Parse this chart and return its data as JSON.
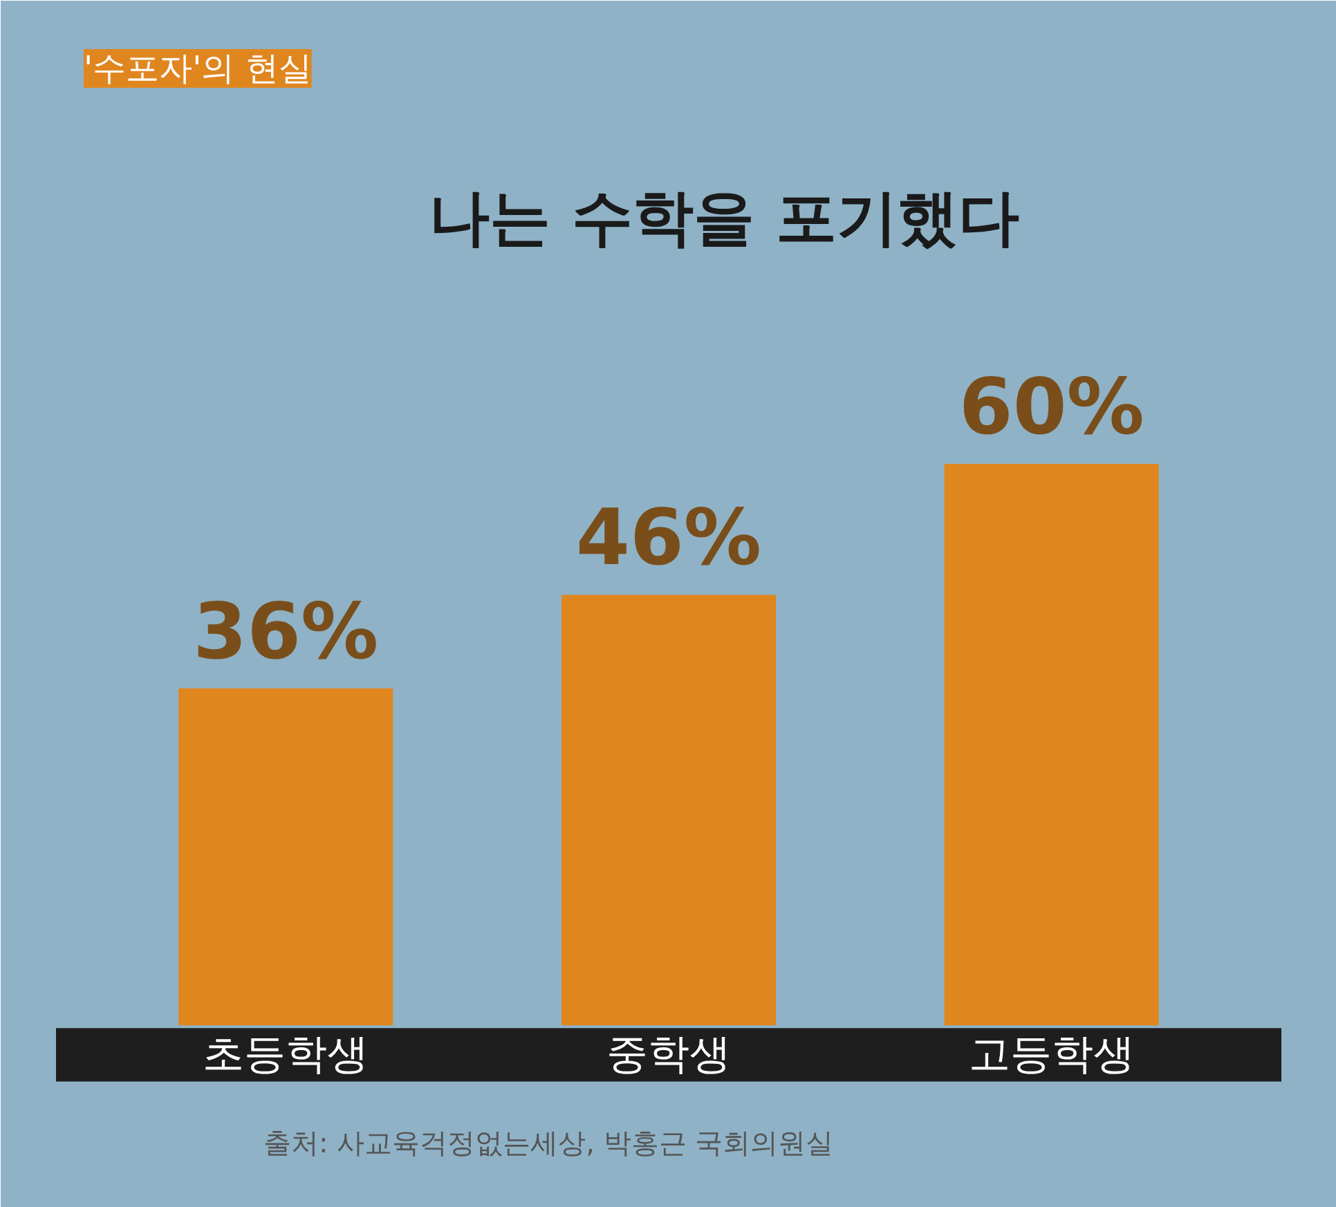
{
  "chart_data": {
    "type": "bar",
    "subtitle": "'수포자'의 현실",
    "title": "나는 수학을 포기했다",
    "categories": [
      "초등학생",
      "중학생",
      "고등학생"
    ],
    "values": [
      36,
      46,
      60
    ],
    "value_labels": [
      "36%",
      "46%",
      "60%"
    ],
    "color": "#e0861f",
    "annotations": [
      "출처: 사교육걱정없는세상, 박홍근 국회의원실"
    ],
    "grid": false
  }
}
